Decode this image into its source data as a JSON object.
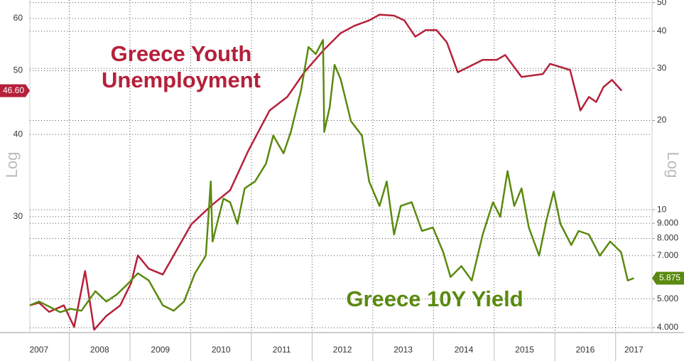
{
  "chart_data": {
    "type": "line",
    "xlim": [
      2007.35,
      2017.6
    ],
    "xticks": [
      {
        "value": 2007.5,
        "label": "2007"
      },
      {
        "value": 2008.5,
        "label": "2008"
      },
      {
        "value": 2009.5,
        "label": "2009"
      },
      {
        "value": 2010.5,
        "label": "2010"
      },
      {
        "value": 2011.5,
        "label": "2011"
      },
      {
        "value": 2012.5,
        "label": "2012"
      },
      {
        "value": 2013.5,
        "label": "2013"
      },
      {
        "value": 2014.5,
        "label": "2014"
      },
      {
        "value": 2015.5,
        "label": "2015"
      },
      {
        "value": 2016.5,
        "label": "2016"
      },
      {
        "value": 2017.3,
        "label": "2017"
      }
    ],
    "xgrid": [
      2008,
      2009,
      2010,
      2011,
      2012,
      2013,
      2014,
      2015,
      2016,
      2017
    ],
    "ylim": [
      20,
      64
    ],
    "yticks": [
      30,
      40,
      50,
      60
    ],
    "ylog": true,
    "ylabel": "Log",
    "y2lim": [
      3.85,
      51
    ],
    "y2ticks": [
      {
        "value": 4,
        "label": "4.000"
      },
      {
        "value": 5,
        "label": "5.000"
      },
      {
        "value": 7,
        "label": "7.000"
      },
      {
        "value": 8,
        "label": "8.000"
      },
      {
        "value": 9,
        "label": "9.000"
      },
      10,
      20,
      30,
      40,
      50
    ],
    "y2log": true,
    "y2label": "Log",
    "grid": true,
    "series": [
      {
        "color": "#b5203a",
        "label_lines": [
          "Greece Youth",
          "Unemployment"
        ],
        "last_value_label": {
          "value": 46.6,
          "label": "46.60"
        },
        "x": [
          2007.35,
          2007.5,
          2007.67,
          2007.91,
          2008.08,
          2008.26,
          2008.41,
          2008.61,
          2008.84,
          2009.02,
          2009.13,
          2009.31,
          2009.54,
          2009.72,
          2010.01,
          2010.36,
          2010.65,
          2010.95,
          2011.3,
          2011.59,
          2011.88,
          2012.18,
          2012.47,
          2012.7,
          2012.94,
          2013.11,
          2013.35,
          2013.52,
          2013.7,
          2013.87,
          2014.05,
          2014.22,
          2014.4,
          2014.81,
          2015.04,
          2015.18,
          2015.45,
          2015.8,
          2015.92,
          2016.25,
          2016.42,
          2016.56,
          2016.68,
          2016.8,
          2016.94,
          2017.1
        ],
        "values": [
          22.0,
          22.2,
          21.5,
          22.0,
          20.4,
          24.8,
          20.2,
          21.2,
          22.0,
          23.8,
          26.2,
          25.0,
          24.5,
          26.2,
          29.2,
          31.3,
          32.9,
          37.8,
          43.5,
          45.6,
          49.8,
          53.6,
          57.0,
          58.5,
          59.6,
          60.8,
          60.6,
          59.6,
          56.3,
          57.6,
          57.6,
          55.2,
          49.7,
          51.9,
          51.9,
          52.8,
          48.9,
          49.4,
          51.2,
          50.1,
          43.5,
          45.6,
          44.8,
          47.2,
          48.4,
          46.6
        ]
      },
      {
        "color": "#5a8a0f",
        "axis": "y2",
        "label_lines": [
          "Greece 10Y Yield"
        ],
        "last_value_label": {
          "value": 5.875,
          "label": "5.875"
        },
        "x": [
          2007.35,
          2007.5,
          2007.67,
          2007.85,
          2008.02,
          2008.2,
          2008.43,
          2008.61,
          2008.78,
          2008.96,
          2009.13,
          2009.31,
          2009.54,
          2009.72,
          2009.89,
          2010.07,
          2010.25,
          2010.33,
          2010.36,
          2010.54,
          2010.65,
          2010.77,
          2010.89,
          2011.06,
          2011.24,
          2011.36,
          2011.53,
          2011.65,
          2011.82,
          2011.94,
          2012.06,
          2012.18,
          2012.2,
          2012.29,
          2012.37,
          2012.47,
          2012.64,
          2012.82,
          2012.94,
          2013.11,
          2013.23,
          2013.35,
          2013.46,
          2013.64,
          2013.81,
          2013.99,
          2014.16,
          2014.28,
          2014.46,
          2014.63,
          2014.81,
          2014.98,
          2015.1,
          2015.22,
          2015.33,
          2015.45,
          2015.57,
          2015.74,
          2015.86,
          2015.98,
          2016.09,
          2016.27,
          2016.39,
          2016.56,
          2016.74,
          2016.91,
          2017.09,
          2017.2,
          2017.3
        ],
        "values": [
          4.76,
          4.9,
          4.71,
          4.51,
          4.63,
          4.56,
          5.31,
          4.9,
          5.17,
          5.61,
          6.1,
          5.77,
          4.76,
          4.56,
          4.9,
          6.1,
          7.0,
          12.46,
          7.81,
          10.9,
          10.6,
          8.96,
          11.8,
          12.46,
          14.3,
          17.8,
          15.5,
          18.3,
          25.4,
          35.4,
          33.5,
          37.4,
          18.3,
          22.2,
          30.8,
          27.6,
          19.9,
          17.8,
          12.46,
          10.3,
          12.46,
          8.25,
          10.3,
          10.6,
          8.48,
          8.71,
          7.19,
          5.93,
          6.45,
          5.77,
          8.25,
          10.6,
          9.47,
          13.5,
          10.3,
          11.8,
          8.71,
          7.0,
          9.21,
          11.5,
          8.96,
          7.6,
          8.48,
          8.25,
          7.0,
          7.81,
          7.19,
          5.77,
          5.875
        ]
      }
    ]
  }
}
